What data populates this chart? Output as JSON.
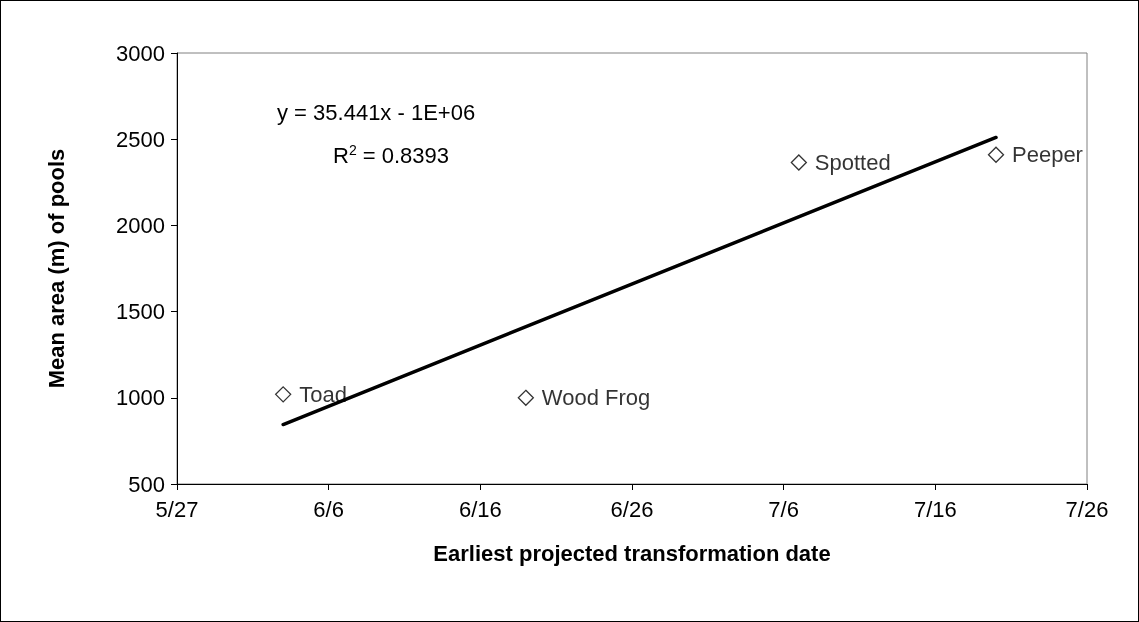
{
  "chart_data": {
    "type": "scatter",
    "xlabel": "Earliest projected transformation date",
    "ylabel": "Mean area (m) of pools",
    "x": [
      "--06-03",
      "--06-19",
      "--07-07",
      "--07-20"
    ],
    "series": [
      {
        "color": "#000000",
        "marker": "diamond",
        "values": [
          1020,
          1000,
          2365,
          2410
        ]
      },
      {
        "type": "line",
        "color": "#000000",
        "marker": "none",
        "line_style": "solid",
        "x": [
          "--06-03",
          "--07-20"
        ],
        "values": [
          845,
          2510
        ]
      }
    ],
    "xlim": [
      "--05-27",
      "--07-26"
    ],
    "xticks": [
      {
        "value": "--05-27",
        "label": "5/27"
      },
      {
        "value": "--06-06",
        "label": "6/6"
      },
      {
        "value": "--06-16",
        "label": "6/16"
      },
      {
        "value": "--06-26",
        "label": "6/26"
      },
      {
        "value": "--07-06",
        "label": "7/6"
      },
      {
        "value": "--07-16",
        "label": "7/16"
      },
      {
        "value": "--07-26",
        "label": "7/26"
      }
    ],
    "ylim": [
      500,
      3000
    ],
    "yticks": [
      500,
      1000,
      1500,
      2000,
      2500,
      3000
    ],
    "annotations": [
      {
        "text": "Toad",
        "x": "--06-03",
        "y": 1020
      },
      {
        "text": "Wood Frog",
        "x": "--06-19",
        "y": 1000
      },
      {
        "text": "Spotted",
        "x": "--07-07",
        "y": 2365
      },
      {
        "text": "Peeper",
        "x": "--07-20",
        "y": 2410
      },
      "y = 35.441x - 1E+06",
      "R$^{2}$ = 0.8393"
    ],
    "grid": false
  }
}
